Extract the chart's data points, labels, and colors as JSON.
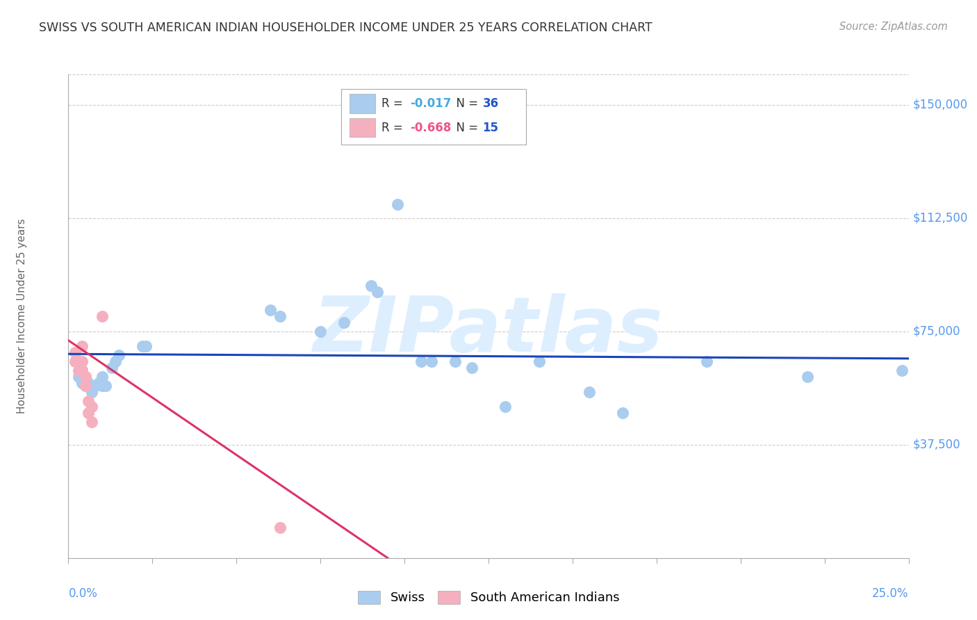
{
  "title": "SWISS VS SOUTH AMERICAN INDIAN HOUSEHOLDER INCOME UNDER 25 YEARS CORRELATION CHART",
  "source": "Source: ZipAtlas.com",
  "ylabel": "Householder Income Under 25 years",
  "ytick_labels": [
    "$37,500",
    "$75,000",
    "$112,500",
    "$150,000"
  ],
  "ytick_values": [
    37500,
    75000,
    112500,
    150000
  ],
  "xlim": [
    0.0,
    0.25
  ],
  "ylim": [
    0,
    160000
  ],
  "watermark": "ZIPatlas",
  "swiss_R": "-0.017",
  "swiss_N": "36",
  "sai_R": "-0.668",
  "sai_N": "15",
  "swiss_color": "#aaccee",
  "sai_color": "#f5b0c0",
  "swiss_line_color": "#1a44bb",
  "sai_line_color": "#dd3366",
  "legend_R_color": "#55aadd",
  "legend_N_color": "#2244bb",
  "swiss_scatter": [
    [
      0.003,
      65000
    ],
    [
      0.003,
      60000
    ],
    [
      0.004,
      62000
    ],
    [
      0.004,
      58000
    ],
    [
      0.005,
      60000
    ],
    [
      0.005,
      57000
    ],
    [
      0.006,
      58000
    ],
    [
      0.007,
      57000
    ],
    [
      0.007,
      55000
    ],
    [
      0.008,
      57000
    ],
    [
      0.009,
      58000
    ],
    [
      0.01,
      60000
    ],
    [
      0.01,
      57000
    ],
    [
      0.011,
      57000
    ],
    [
      0.013,
      63000
    ],
    [
      0.014,
      65000
    ],
    [
      0.015,
      67000
    ],
    [
      0.022,
      70000
    ],
    [
      0.023,
      70000
    ],
    [
      0.06,
      82000
    ],
    [
      0.063,
      80000
    ],
    [
      0.075,
      75000
    ],
    [
      0.082,
      78000
    ],
    [
      0.09,
      90000
    ],
    [
      0.092,
      88000
    ],
    [
      0.105,
      65000
    ],
    [
      0.108,
      65000
    ],
    [
      0.115,
      65000
    ],
    [
      0.12,
      63000
    ],
    [
      0.13,
      50000
    ],
    [
      0.14,
      65000
    ],
    [
      0.155,
      55000
    ],
    [
      0.165,
      48000
    ],
    [
      0.19,
      65000
    ],
    [
      0.22,
      60000
    ],
    [
      0.248,
      62000
    ]
  ],
  "swiss_outlier": [
    0.098,
    117000
  ],
  "sai_scatter": [
    [
      0.002,
      68000
    ],
    [
      0.002,
      65000
    ],
    [
      0.003,
      65000
    ],
    [
      0.003,
      62000
    ],
    [
      0.004,
      70000
    ],
    [
      0.004,
      65000
    ],
    [
      0.004,
      62000
    ],
    [
      0.005,
      60000
    ],
    [
      0.005,
      57000
    ],
    [
      0.006,
      52000
    ],
    [
      0.006,
      48000
    ],
    [
      0.007,
      50000
    ],
    [
      0.007,
      45000
    ],
    [
      0.063,
      10000
    ]
  ],
  "sai_outlier_high": [
    0.01,
    80000
  ],
  "swiss_trend_x": [
    0.0,
    0.25
  ],
  "swiss_trend_y": [
    67500,
    66000
  ],
  "sai_trend_x": [
    0.0,
    0.095
  ],
  "sai_trend_y": [
    72000,
    0
  ]
}
